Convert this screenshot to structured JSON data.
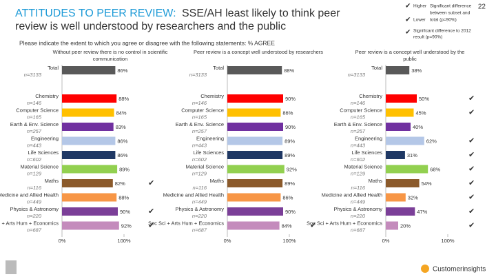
{
  "title_lead": "ATTITUDES TO PEER REVIEW:",
  "title_lines": [
    "SSE/AH least likely to think peer",
    "review is well understood by researchers and the public"
  ],
  "subtitle": "Please indicate the extent to which you agree or disagree with the following statements: % AGREE",
  "legend": {
    "higher": "Higher",
    "lower": "Lower",
    "subset_note": [
      "Significant difference",
      "between subset and",
      "total (p=90%)"
    ],
    "trend_note": [
      "Significant difference to 2012",
      "result (p=90%)"
    ]
  },
  "page_number": "22",
  "footer_brand": "Customerinsights",
  "chart_data": [
    {
      "type": "bar",
      "orientation": "horizontal",
      "title": [
        "Without peer review there is no control in scientific",
        "communication"
      ],
      "categories": [
        "Total",
        "Chemistry",
        "Computer Science",
        "Earth & Env. Science",
        "Engineering",
        "Life Sciences",
        "Material Science",
        "Maths",
        "Medicine and Allied Health",
        "Physics & Astronomy",
        "Soc Sci + Arts Hum + Economics"
      ],
      "n_labels": [
        "n=3133",
        "n=146",
        "n=165",
        "n=257",
        "n=443",
        "n=602",
        "n=129",
        "n=116",
        "n=449",
        "n=220",
        "n=687"
      ],
      "values": [
        86,
        88,
        84,
        83,
        86,
        86,
        89,
        82,
        88,
        90,
        92
      ],
      "value_labels": [
        "86%",
        "88%",
        "84%",
        "83%",
        "86%",
        "86%",
        "89%",
        "82%",
        "88%",
        "90%",
        "92%"
      ],
      "colors": [
        "#595959",
        "#ff0000",
        "#ffc000",
        "#7030a0",
        "#b4c7e7",
        "#1f3864",
        "#92d050",
        "#8b5a2b",
        "#f79646",
        "#7b3f98",
        "#c48bbc"
      ],
      "significance": [
        null,
        null,
        null,
        null,
        null,
        null,
        null,
        "higher",
        null,
        "lower",
        "lower"
      ],
      "xlim": [
        0,
        100
      ],
      "xticks": [
        {
          "value": 0,
          "label": "0%"
        },
        {
          "value": 100,
          "label": "100%"
        }
      ]
    },
    {
      "type": "bar",
      "orientation": "horizontal",
      "title": [
        "Peer review is a concept well understood by researchers"
      ],
      "categories": [
        "Total",
        "Chemistry",
        "Computer Science",
        "Earth & Env. Science",
        "Engineering",
        "Life Sciences",
        "Material Science",
        "Maths",
        "Medicine and Allied Health",
        "Physics & Astronomy",
        "Soc Sci + Arts Hum + Economics"
      ],
      "n_labels": [
        "n=3133",
        "n=146",
        "n=165",
        "n=257",
        "n=443",
        "n=602",
        "n=129",
        "n=116",
        "n=449",
        "n=220",
        "n=687"
      ],
      "values": [
        88,
        90,
        86,
        90,
        89,
        89,
        92,
        89,
        86,
        90,
        84
      ],
      "value_labels": [
        "88%",
        "90%",
        "86%",
        "90%",
        "89%",
        "89%",
        "92%",
        "89%",
        "86%",
        "90%",
        "84%"
      ],
      "colors": [
        "#595959",
        "#ff0000",
        "#ffc000",
        "#7030a0",
        "#b4c7e7",
        "#1f3864",
        "#92d050",
        "#8b5a2b",
        "#f79646",
        "#7b3f98",
        "#c48bbc"
      ],
      "significance": [
        null,
        null,
        null,
        null,
        null,
        null,
        null,
        null,
        null,
        null,
        "lower"
      ],
      "xlim": [
        0,
        100
      ],
      "xticks": [
        {
          "value": 0,
          "label": "0%"
        },
        {
          "value": 100,
          "label": "100%"
        }
      ]
    },
    {
      "type": "bar",
      "orientation": "horizontal",
      "title": [
        "Peer review is a concept well understood by the",
        "public"
      ],
      "categories": [
        "Total",
        "Chemistry",
        "Computer Science",
        "Earth & Env. Science",
        "Engineering",
        "Life Sciences",
        "Material Science",
        "Maths",
        "Medicine and Allied Health",
        "Physics & Astronomy",
        "Soc Sci + Arts Hum + Economics"
      ],
      "n_labels": [
        "n=3133",
        "n=146",
        "n=165",
        "n=257",
        "n=443",
        "n=602",
        "n=129",
        "n=116",
        "n=449",
        "n=220",
        "n=687"
      ],
      "values": [
        38,
        50,
        45,
        40,
        62,
        31,
        68,
        54,
        32,
        47,
        20
      ],
      "value_labels": [
        "38%",
        "50%",
        "45%",
        "40%",
        "62%",
        "31%",
        "68%",
        "54%",
        "32%",
        "47%",
        "20%"
      ],
      "colors": [
        "#595959",
        "#ff0000",
        "#ffc000",
        "#7030a0",
        "#b4c7e7",
        "#1f3864",
        "#92d050",
        "#8b5a2b",
        "#f79646",
        "#7b3f98",
        "#c48bbc"
      ],
      "significance": [
        null,
        "higher",
        "higher",
        null,
        "higher",
        "lower",
        "higher",
        "higher",
        "lower",
        "higher",
        "lower"
      ],
      "xlim": [
        0,
        100
      ],
      "xticks": [
        {
          "value": 0,
          "label": "0%"
        },
        {
          "value": 100,
          "label": "100%"
        }
      ]
    }
  ]
}
